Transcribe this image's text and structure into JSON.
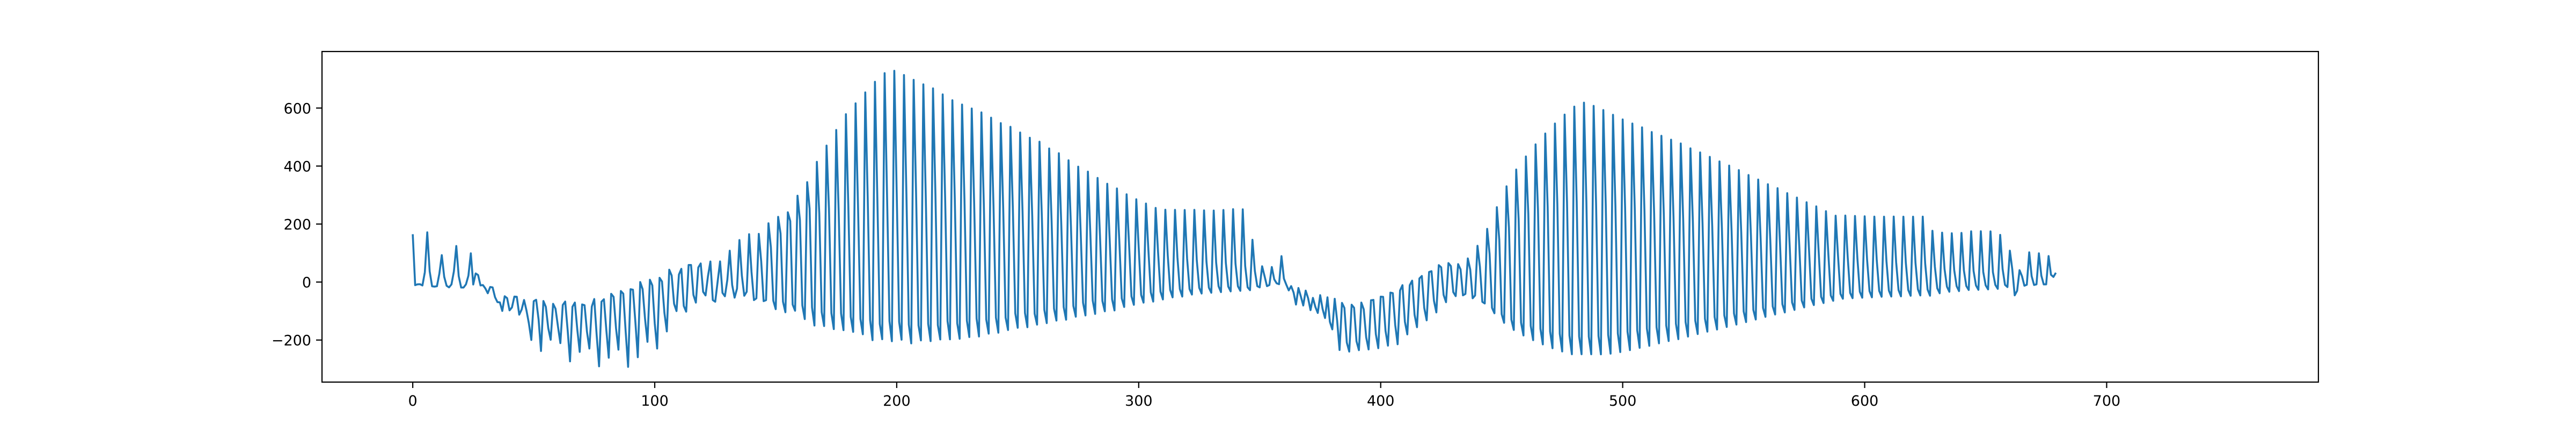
{
  "chart_data": {
    "type": "line",
    "title": "",
    "xlabel": "",
    "ylabel": "",
    "xlim": [
      -37.5,
      787.5
    ],
    "ylim": [
      -345,
      795
    ],
    "x_ticks": [
      0,
      100,
      200,
      300,
      400,
      500,
      600,
      700
    ],
    "y_ticks": [
      -200,
      0,
      200,
      400,
      600
    ],
    "x_tick_labels": [
      "0",
      "100",
      "200",
      "300",
      "400",
      "500",
      "600",
      "700"
    ],
    "y_tick_labels": [
      "−200",
      "0",
      "200",
      "400",
      "600"
    ],
    "grid": false,
    "legend": "none",
    "series": [
      {
        "color": "#1f77b4",
        "x_start": 0,
        "x_step": 1,
        "values": [
          165.0,
          -10.7,
          -7.8,
          -7.5,
          -11.7,
          34.1,
          171.4,
          36.8,
          -14.7,
          -15.7,
          -14.4,
          29.1,
          92.9,
          18.2,
          -12.9,
          -18.3,
          -8.2,
          36.8,
          124.3,
          20.6,
          -18.8,
          -18.9,
          -7.8,
          21.8,
          99.0,
          -8.5,
          29.7,
          24.3,
          -11.7,
          -10.3,
          -22.0,
          -38.6,
          -17.0,
          -18.4,
          -52.1,
          -69.2,
          -70.0,
          -99.7,
          -49.0,
          -55.5,
          -97.6,
          -87.4,
          -50.1,
          -50.9,
          -112.4,
          -94.8,
          -61.8,
          -98.1,
          -143.0,
          -199.7,
          -65.9,
          -61.1,
          -128.7,
          -237.8,
          -65.5,
          -85.6,
          -158.8,
          -199.1,
          -75.1,
          -91.9,
          -152.6,
          -210.6,
          -79.0,
          -67.3,
          -164.3,
          -273.5,
          -85.3,
          -70.7,
          -163.7,
          -240.8,
          -77.2,
          -79.9,
          -171.6,
          -229.2,
          -84.5,
          -58.6,
          -182.2,
          -290.5,
          -67.6,
          -59.3,
          -165.8,
          -261.0,
          -40.6,
          -51.0,
          -158.9,
          -233.1,
          -30.9,
          -40.1,
          -171.9,
          -292.5,
          -24.7,
          -26.4,
          -137.7,
          -259.1,
          0.0,
          -24.8,
          -127.3,
          -206.1,
          8.0,
          -11.6,
          -142.4,
          -229.2,
          14.6,
          1.7,
          -106.1,
          -170.2,
          42.6,
          22.4,
          -75.2,
          -100.1,
          26.0,
          45.6,
          -82.3,
          -102.1,
          58.7,
          58.9,
          -44.6,
          -70.9,
          50.2,
          64.2,
          -33.7,
          -46.1,
          20.4,
          70.9,
          -62.2,
          -67.9,
          2.0,
          71.0,
          -37.2,
          -49.0,
          7.1,
          108.0,
          -10.0,
          -53.7,
          -22.8,
          144.8,
          22.6,
          -47.2,
          -33.6,
          165.0,
          34.4,
          -62.2,
          -56.2,
          166.1,
          71.0,
          -65.7,
          -62.4,
          202.8,
          119.6,
          -64.4,
          -93.5,
          224.9,
          166.9,
          -67.6,
          -104.1,
          240.6,
          210.3,
          -77.7,
          -98.9,
          297.7,
          213.4,
          -80.4,
          -127.7,
          344.6,
          253.3,
          -87.3,
          -149.9,
          414.6,
          236.6,
          -103.8,
          -151.7,
          470.7,
          253.7,
          -107.1,
          -162.2,
          524.5,
          247.7,
          -108.2,
          -165.8,
          578.8,
          261.6,
          -119.8,
          -171.8,
          616.3,
          265.3,
          -127.2,
          -180.0,
          654.0,
          295.4,
          -131.1,
          -200.4,
          690.6,
          286.6,
          -144.4,
          -197.1,
          720.5,
          300.1,
          -134.7,
          -204.0,
          728.6,
          305.8,
          -137.3,
          -198.8,
          713.9,
          305.0,
          -146.8,
          -211.4,
          697.4,
          306.1,
          -149.4,
          -201.3,
          681.7,
          296.1,
          -143.9,
          -203.6,
          667.8,
          301.7,
          -148.7,
          -198.0,
          647.0,
          293.0,
          -134.7,
          -197.5,
          627.0,
          286.9,
          -141.6,
          -195.6,
          612.2,
          282.1,
          -133.3,
          -189.6,
          598.6,
          272.6,
          -125.6,
          -187.6,
          585.2,
          266.8,
          -129.3,
          -177.9,
          566.8,
          259.6,
          -122.8,
          -174.6,
          548.0,
          255.2,
          -122.6,
          -165.4,
          535.3,
          251.1,
          -108.0,
          -157.7,
          515.6,
          241.6,
          -106.6,
          -155.7,
          497.6,
          227.8,
          -109.3,
          -146.8,
          484.0,
          218.4,
          -96.0,
          -141.6,
          460.7,
          210.9,
          -91.5,
          -132.8,
          444.1,
          199.2,
          -86.3,
          -129.9,
          420.0,
          191.3,
          -82.3,
          -119.4,
          398.0,
          176.3,
          -71.5,
          -115.1,
          380.8,
          170.7,
          -63.9,
          -109.9,
          359.1,
          159.0,
          -65.5,
          -100.8,
          338.9,
          147.3,
          -59.6,
          -97.9,
          322.7,
          138.6,
          -56.3,
          -86.0,
          302.6,
          132.4,
          -49.3,
          -78.6,
          285.6,
          118.3,
          -44.1,
          -71.0,
          270.6,
          110.9,
          -35.5,
          -67.4,
          255.6,
          102.7,
          -33.0,
          -60.0,
          249.5,
          91.6,
          -27.1,
          -52.8,
          249.0,
          85.3,
          -24.2,
          -50.0,
          248.6,
          80.9,
          -24.1,
          -43.1,
          248.9,
          74.8,
          -19.8,
          -39.6,
          247.2,
          70.2,
          -19.5,
          -36.8,
          246.6,
          67.3,
          -14.6,
          -34.7,
          248.6,
          66.4,
          -15.5,
          -32.2,
          251.3,
          63.3,
          -14.4,
          -30.3,
          250.8,
          55.7,
          -18.0,
          -28.1,
          145.8,
          38.1,
          -14.2,
          -18.3,
          54.4,
          20.6,
          -14.1,
          -10.3,
          51.9,
          9.5,
          -4.3,
          -7.4,
          89.3,
          12.1,
          -9.2,
          -28.7,
          -14.1,
          -36.0,
          -77.5,
          -20.6,
          -49.6,
          -80.8,
          -29.6,
          -55.4,
          -96.8,
          -54.6,
          -85.7,
          -106.6,
          -45.2,
          -93.1,
          -124.2,
          -52.7,
          -137.1,
          -163.2,
          -57.8,
          -132.9,
          -234.3,
          -71.9,
          -89.3,
          -208.8,
          -239.8,
          -78.2,
          -88.6,
          -204.0,
          -234.9,
          -70.8,
          -94.2,
          -190.5,
          -232.3,
          -62.8,
          -61.6,
          -179.9,
          -228.0,
          -50.4,
          -51.0,
          -168.5,
          -219.3,
          -36.4,
          -38.2,
          -148.0,
          -214.5,
          -29.1,
          -10.8,
          -136.9,
          -180.4,
          -10.9,
          4.8,
          -112.8,
          -155.7,
          12.3,
          20.9,
          -89.4,
          -132.0,
          34.6,
          37.4,
          -64.2,
          -104.6,
          58.3,
          50.8,
          -44.3,
          -69.4,
          65.4,
          55.1,
          -35.0,
          -48.5,
          61.8,
          43.6,
          -45.7,
          -41.0,
          81.4,
          43.4,
          -55.9,
          -46.2,
          125.0,
          52.8,
          -68.3,
          -73.8,
          183.5,
          97.0,
          -88.8,
          -107.7,
          258.1,
          146.2,
          -110.8,
          -140.5,
          330.2,
          188.0,
          -129.6,
          -165.1,
          388.0,
          217.3,
          -139.8,
          -184.1,
          433.2,
          235.5,
          -150.9,
          -200.3,
          474.7,
          249.0,
          -161.0,
          -214.9,
          512.3,
          259.9,
          -170.1,
          -228.1,
          546.6,
          268.5,
          -178.4,
          -239.3,
          577.5,
          273.3,
          -184.4,
          -248.9,
          605.0,
          276.8,
          -187.4,
          -248.9,
          618.6,
          276.4,
          -188.1,
          -248.9,
          607.5,
          271.8,
          -186.2,
          -249.2,
          593.1,
          267.7,
          -181.6,
          -246.9,
          576.7,
          261.3,
          -177.3,
          -241.4,
          560.9,
          255.4,
          -171.4,
          -234.7,
          546.7,
          250.6,
          -165.7,
          -226.8,
          533.5,
          244.4,
          -160.2,
          -219.8,
          517.3,
          237.5,
          -156.0,
          -211.3,
          504.3,
          231.9,
          -150.0,
          -203.3,
          490.9,
          224.9,
          -143.7,
          -196.8,
          477.9,
          217.5,
          -137.9,
          -188.0,
          461.0,
          209.5,
          -133.1,
          -179.3,
          446.9,
          201.3,
          -126.8,
          -171.0,
          431.6,
          193.2,
          -120.5,
          -163.6,
          416.1,
          185.0,
          -114.9,
          -154.9,
          401.6,
          176.6,
          -108.3,
          -146.6,
          386.1,
          168.7,
          -101.3,
          -138.0,
          369.1,
          159.7,
          -96.1,
          -129.2,
          353.6,
          151.7,
          -89.2,
          -119.9,
          337.3,
          143.8,
          -83.8,
          -111.9,
          323.6,
          135.4,
          -76.6,
          -104.8,
          306.5,
          126.6,
          -70.1,
          -96.1,
          291.2,
          119.5,
          -63.9,
          -87.3,
          275.1,
          111.5,
          -57.7,
          -79.4,
          261.0,
          102.8,
          -50.7,
          -72.3,
          244.3,
          95.0,
          -46.3,
          -64.7,
          228.9,
          88.6,
          -41.0,
          -57.6,
          229.3,
          84.2,
          -37.5,
          -55.6,
          227.9,
          80.5,
          -33.6,
          -54.0,
          226.8,
          77.1,
          -31.3,
          -52.7,
          225.6,
          74.5,
          -30.3,
          -50.7,
          225.4,
          72.1,
          -29.3,
          -49.9,
          225.8,
          69.1,
          -27.8,
          -49.2,
          225.3,
          67.1,
          -27.2,
          -47.3,
          225.3,
          66.0,
          -25.0,
          -46.2,
          225.6,
          64.3,
          -25.7,
          -47.1,
          176.9,
          53.5,
          -21.5,
          -38.7,
          170.3,
          45.1,
          -16.1,
          -33.5,
          168.3,
          41.4,
          -14.1,
          -31.2,
          169.3,
          40.4,
          -13.7,
          -27.3,
          174.9,
          38.5,
          -11.7,
          -26.8,
          175.1,
          34.8,
          -11.3,
          -25.3,
          174.8,
          33.9,
          -10.0,
          -23.3,
          162.6,
          45.0,
          -9.7,
          -17.2,
          108.2,
          44.1,
          -45.8,
          -30.2,
          40.9,
          20.5,
          -12.7,
          -9.3,
          102.5,
          20.2,
          -10.1,
          -8.0,
          99.1,
          22.2,
          -8.1,
          -7.8,
          89.6,
          25.1,
          17.6,
          32.1
        ]
      }
    ]
  }
}
